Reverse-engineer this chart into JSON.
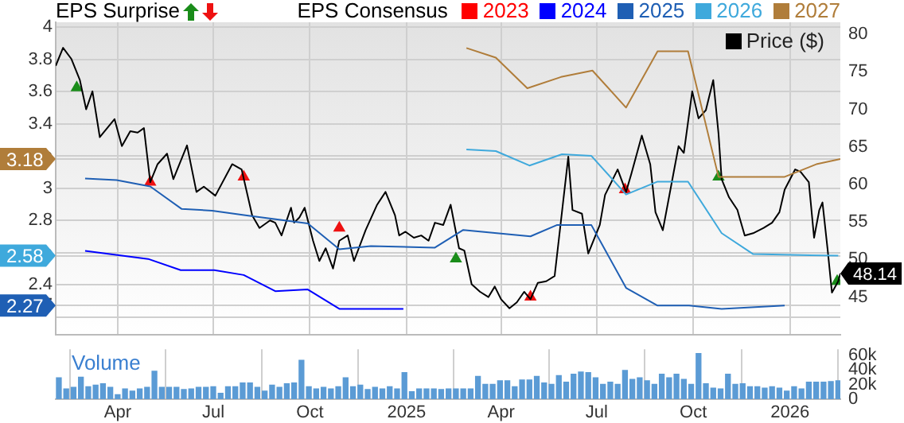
{
  "chart_data": [
    {
      "type": "line",
      "annotations": [
        "EPS Surprise"
      ],
      "legend_title": "EPS Consensus",
      "legend": "top",
      "grid": true,
      "tick_labels": "y",
      "xlim": [
        "2024-02-02",
        "2026-02-18"
      ],
      "xticks": [
        {
          "value": "2024-04-01",
          "label": null
        },
        {
          "value": "2024-07-01",
          "label": null
        },
        {
          "value": "2024-10-01",
          "label": null
        },
        {
          "value": "2025-01-01",
          "label": null
        },
        {
          "value": "2025-04-01",
          "label": null
        },
        {
          "value": "2025-07-01",
          "label": null
        },
        {
          "value": "2025-10-01",
          "label": null
        },
        {
          "value": "2026-01-01",
          "label": null
        }
      ],
      "ylim": [
        2.09,
        4.03
      ],
      "yticks": [
        {
          "value": 2.2,
          "label": null
        },
        {
          "value": 2.27,
          "label": "2.27"
        },
        2.4,
        {
          "value": 2.58,
          "label": "2.58"
        },
        {
          "value": 2.6,
          "label": null
        },
        2.8,
        3,
        {
          "value": 3.18,
          "label": "3.18"
        },
        {
          "value": 3.2,
          "label": null
        },
        3.4,
        3.6,
        3.8,
        4
      ],
      "y2lim": [
        40,
        81.6
      ],
      "y2ticks": [
        45,
        50,
        55,
        60,
        65,
        70,
        75,
        80
      ],
      "series": [
        {
          "name": "2023",
          "color": "#ff0000"
        },
        {
          "name": "2024",
          "color": "#0000ff",
          "x": [
            "2024-03-01",
            "2024-04-30",
            "2024-05-31",
            "2024-07-02",
            "2024-07-30",
            "2024-08-29",
            "2024-09-29",
            "2024-10-29",
            "2024-12-29"
          ],
          "values": [
            2.61,
            2.56,
            2.49,
            2.49,
            2.46,
            2.36,
            2.37,
            2.25,
            2.25
          ]
        },
        {
          "name": "2025",
          "color": "#1f5fb4",
          "x": [
            "2024-03-01",
            "2024-03-31",
            "2024-05-02",
            "2024-06-01",
            "2024-06-30",
            "2024-08-02",
            "2024-09-29",
            "2024-10-29",
            "2024-11-28",
            "2025-01-28",
            "2025-02-24",
            "2025-04-29",
            "2025-05-24",
            "2025-06-26",
            "2025-07-29",
            "2025-08-28",
            "2025-09-27",
            "2025-10-28",
            "2025-12-27"
          ],
          "values": [
            3.06,
            3.05,
            3.01,
            2.87,
            2.86,
            2.83,
            2.78,
            2.62,
            2.64,
            2.63,
            2.74,
            2.7,
            2.77,
            2.77,
            2.38,
            2.27,
            2.27,
            2.25,
            2.27
          ]
        },
        {
          "name": "2026",
          "color": "#3fa9dc",
          "x": [
            "2025-02-27",
            "2025-03-27",
            "2025-04-28",
            "2025-05-29",
            "2025-06-26",
            "2025-07-29",
            "2025-08-28",
            "2025-09-26",
            "2025-10-28",
            "2025-11-27",
            "2026-02-16"
          ],
          "values": [
            3.24,
            3.23,
            3.14,
            3.21,
            3.2,
            2.96,
            3.04,
            3.04,
            2.72,
            2.59,
            2.58
          ]
        },
        {
          "name": "2027",
          "color": "#b07d3a",
          "x": [
            "2025-02-27",
            "2025-03-27",
            "2025-04-26",
            "2025-05-28",
            "2025-06-27",
            "2025-07-29",
            "2025-08-28",
            "2025-09-26",
            "2025-10-25",
            "2025-12-27",
            "2026-01-27",
            "2026-02-18"
          ],
          "values": [
            3.87,
            3.81,
            3.62,
            3.69,
            3.73,
            3.5,
            3.85,
            3.85,
            3.07,
            3.07,
            3.15,
            3.18
          ]
        },
        {
          "name": "Price ($)",
          "color": "#000000",
          "axis": "y2",
          "x": [
            "2024-02-02",
            "2024-02-09",
            "2024-02-17",
            "2024-02-25",
            "2024-03-02",
            "2024-03-08",
            "2024-03-15",
            "2024-03-29",
            "2024-04-05",
            "2024-04-13",
            "2024-04-20",
            "2024-04-26",
            "2024-05-02",
            "2024-05-09",
            "2024-05-18",
            "2024-05-24",
            "2024-06-06",
            "2024-06-15",
            "2024-06-22",
            "2024-07-03",
            "2024-07-19",
            "2024-07-28",
            "2024-08-07",
            "2024-08-14",
            "2024-08-24",
            "2024-08-29",
            "2024-09-04",
            "2024-09-13",
            "2024-09-16",
            "2024-09-21",
            "2024-09-26",
            "2024-10-04",
            "2024-10-10",
            "2024-10-16",
            "2024-10-23",
            "2024-10-29",
            "2024-11-06",
            "2024-11-12",
            "2024-11-23",
            "2024-12-04",
            "2024-12-12",
            "2024-12-21",
            "2024-12-25",
            "2024-12-31",
            "2025-01-08",
            "2025-01-15",
            "2025-01-22",
            "2025-01-28",
            "2025-02-05",
            "2025-02-12",
            "2025-02-20",
            "2025-02-25",
            "2025-03-04",
            "2025-03-12",
            "2025-03-20",
            "2025-03-26",
            "2025-04-01",
            "2025-04-09",
            "2025-04-16",
            "2025-04-23",
            "2025-04-29",
            "2025-05-06",
            "2025-05-14",
            "2025-05-22",
            "2025-05-27",
            "2025-06-04",
            "2025-06-08",
            "2025-06-17",
            "2025-06-23",
            "2025-07-04",
            "2025-07-09",
            "2025-07-21",
            "2025-07-29",
            "2025-08-03",
            "2025-08-13",
            "2025-08-21",
            "2025-08-26",
            "2025-09-02",
            "2025-09-17",
            "2025-09-22",
            "2025-09-30",
            "2025-10-06",
            "2025-10-13",
            "2025-10-20",
            "2025-10-25",
            "2025-10-28",
            "2025-11-04",
            "2025-11-12",
            "2025-11-14",
            "2025-11-19",
            "2025-11-27",
            "2025-12-07",
            "2025-12-15",
            "2025-12-22",
            "2025-12-27",
            "2026-01-06",
            "2026-01-11",
            "2026-01-19",
            "2026-01-24",
            "2026-01-29",
            "2026-02-01",
            "2026-02-06",
            "2026-02-10",
            "2026-02-16",
            "2026-02-18"
          ],
          "values": [
            75.8,
            78.2,
            76.7,
            73.9,
            70.0,
            72.4,
            66.3,
            68.7,
            65.1,
            67.1,
            66.9,
            67.5,
            60.3,
            62.7,
            64.1,
            60.7,
            65.2,
            59.0,
            59.7,
            58.5,
            62.7,
            62.0,
            55.9,
            54.2,
            55.2,
            54.9,
            53.2,
            56.9,
            54.9,
            55.6,
            56.9,
            52.5,
            49.8,
            51.5,
            48.8,
            52.5,
            53.2,
            49.8,
            53.9,
            57.3,
            59.0,
            55.9,
            53.2,
            53.7,
            52.9,
            53.2,
            52.5,
            54.9,
            54.6,
            57.3,
            51.5,
            51.2,
            46.7,
            45.7,
            45.0,
            46.4,
            44.7,
            43.5,
            44.3,
            45.7,
            44.7,
            46.9,
            47.1,
            47.8,
            53.9,
            63.7,
            56.6,
            56.1,
            50.8,
            54.6,
            58.6,
            62.0,
            59.0,
            61.4,
            66.5,
            62.7,
            56.3,
            53.9,
            65.1,
            64.2,
            72.4,
            68.8,
            69.9,
            73.9,
            66.8,
            60.7,
            58.3,
            56.6,
            55.6,
            53.2,
            53.5,
            54.2,
            54.9,
            56.3,
            59.3,
            62.0,
            61.7,
            60.3,
            52.9,
            56.6,
            57.6,
            51.2,
            45.6,
            47.1,
            48.14
          ],
          "value_labels": [
            null,
            null,
            null,
            null,
            null,
            null,
            null,
            null,
            null,
            null,
            null,
            null,
            null,
            null,
            null,
            null,
            null,
            null,
            null,
            null,
            null,
            null,
            null,
            null,
            null,
            null,
            null,
            null,
            null,
            null,
            null,
            null,
            null,
            null,
            null,
            null,
            null,
            null,
            null,
            null,
            null,
            null,
            null,
            null,
            null,
            null,
            null,
            null,
            null,
            null,
            null,
            null,
            null,
            null,
            null,
            null,
            null,
            null,
            null,
            null,
            null,
            null,
            null,
            null,
            null,
            null,
            null,
            null,
            null,
            null,
            null,
            null,
            null,
            null,
            null,
            null,
            null,
            null,
            null,
            null,
            null,
            null,
            null,
            null,
            null,
            null,
            null,
            null,
            null,
            null,
            null,
            null,
            null,
            null,
            null,
            null,
            null,
            null,
            null,
            null,
            null,
            null,
            null,
            null,
            "48.14"
          ]
        },
        {
          "type": "scatter",
          "color": "#1a8c1a",
          "marker": "triangle",
          "axis": "y2",
          "x": [
            "2024-02-22",
            "2025-02-17",
            "2025-10-25",
            "2026-02-15"
          ],
          "values": [
            72.9,
            50.1,
            61.0,
            47.1
          ]
        },
        {
          "type": "scatter",
          "color": "#ee1111",
          "marker": "triangle",
          "axis": "y2",
          "x": [
            "2024-05-02",
            "2024-07-30",
            "2024-10-29",
            "2025-04-29",
            "2025-07-28"
          ],
          "values": [
            60.3,
            61.0,
            54.2,
            45.0,
            59.3
          ]
        }
      ]
    },
    {
      "type": "bar",
      "title": "Volume",
      "color": "#5b9bd5",
      "grid": "x",
      "xlim": [
        "2024-02-02",
        "2026-02-18"
      ],
      "xticks": [
        {
          "value": "2024-04-01",
          "label": "Apr"
        },
        {
          "value": "2024-07-01",
          "label": "Jul"
        },
        {
          "value": "2024-10-01",
          "label": "Oct"
        },
        {
          "value": "2025-01-01",
          "label": "2025"
        },
        {
          "value": "2025-04-01",
          "label": "Apr"
        },
        {
          "value": "2025-07-01",
          "label": "Jul"
        },
        {
          "value": "2025-10-01",
          "label": "Oct"
        },
        {
          "value": "2026-01-01",
          "label": "2026"
        }
      ],
      "ylim": [
        0,
        68000
      ],
      "yticks": [
        0,
        {
          "value": 20000,
          "label": "20k"
        },
        {
          "value": 40000,
          "label": "40k"
        },
        {
          "value": 60000,
          "label": "60k"
        }
      ],
      "x": [
        "2024-02-05",
        "2024-02-12",
        "2024-02-19",
        "2024-02-26",
        "2024-03-04",
        "2024-03-11",
        "2024-03-18",
        "2024-03-25",
        "2024-04-01",
        "2024-04-08",
        "2024-04-15",
        "2024-04-22",
        "2024-04-29",
        "2024-05-06",
        "2024-05-13",
        "2024-05-20",
        "2024-05-27",
        "2024-06-03",
        "2024-06-10",
        "2024-06-17",
        "2024-06-24",
        "2024-07-01",
        "2024-07-08",
        "2024-07-15",
        "2024-07-22",
        "2024-07-29",
        "2024-08-05",
        "2024-08-12",
        "2024-08-19",
        "2024-08-26",
        "2024-09-02",
        "2024-09-09",
        "2024-09-16",
        "2024-09-23",
        "2024-09-30",
        "2024-10-07",
        "2024-10-14",
        "2024-10-21",
        "2024-10-28",
        "2024-11-04",
        "2024-11-11",
        "2024-11-18",
        "2024-11-25",
        "2024-12-02",
        "2024-12-09",
        "2024-12-16",
        "2024-12-23",
        "2024-12-30",
        "2025-01-06",
        "2025-01-13",
        "2025-01-20",
        "2025-01-27",
        "2025-02-03",
        "2025-02-10",
        "2025-02-17",
        "2025-02-24",
        "2025-03-03",
        "2025-03-10",
        "2025-03-17",
        "2025-03-24",
        "2025-03-31",
        "2025-04-07",
        "2025-04-14",
        "2025-04-21",
        "2025-04-28",
        "2025-05-05",
        "2025-05-12",
        "2025-05-19",
        "2025-05-26",
        "2025-06-02",
        "2025-06-09",
        "2025-06-16",
        "2025-06-23",
        "2025-06-30",
        "2025-07-07",
        "2025-07-14",
        "2025-07-21",
        "2025-07-28",
        "2025-08-04",
        "2025-08-11",
        "2025-08-18",
        "2025-08-25",
        "2025-09-01",
        "2025-09-08",
        "2025-09-15",
        "2025-09-22",
        "2025-09-29",
        "2025-10-06",
        "2025-10-13",
        "2025-10-20",
        "2025-10-27",
        "2025-11-03",
        "2025-11-10",
        "2025-11-17",
        "2025-11-24",
        "2025-12-01",
        "2025-12-08",
        "2025-12-15",
        "2025-12-22",
        "2025-12-29",
        "2026-01-05",
        "2026-01-12",
        "2026-01-19",
        "2026-01-26",
        "2026-02-02",
        "2026-02-09",
        "2026-02-16"
      ],
      "values": [
        29000,
        14000,
        16000,
        30000,
        17000,
        19000,
        21000,
        16000,
        6000,
        14000,
        11000,
        14000,
        16000,
        38000,
        16000,
        16000,
        16000,
        13000,
        14000,
        16000,
        16000,
        17000,
        8000,
        17000,
        17000,
        22000,
        22000,
        16000,
        11000,
        19000,
        16000,
        21000,
        22000,
        53000,
        17000,
        14000,
        16000,
        14000,
        17000,
        29000,
        17000,
        19000,
        13000,
        16000,
        14000,
        17000,
        14000,
        36000,
        10000,
        14000,
        14000,
        14000,
        13000,
        14000,
        14000,
        14000,
        14000,
        31000,
        20000,
        20000,
        25000,
        25000,
        17000,
        26000,
        26000,
        31000,
        22000,
        20000,
        32000,
        23000,
        34000,
        37000,
        36000,
        29000,
        20000,
        23000,
        20000,
        39000,
        27000,
        29000,
        25000,
        20000,
        34000,
        29000,
        34000,
        27000,
        20000,
        62000,
        21000,
        15000,
        14000,
        34000,
        20000,
        21000,
        17000,
        17000,
        15000,
        17000,
        15000,
        11000,
        17000,
        14000,
        23000,
        23000,
        23000,
        24000,
        25000
      ]
    }
  ]
}
